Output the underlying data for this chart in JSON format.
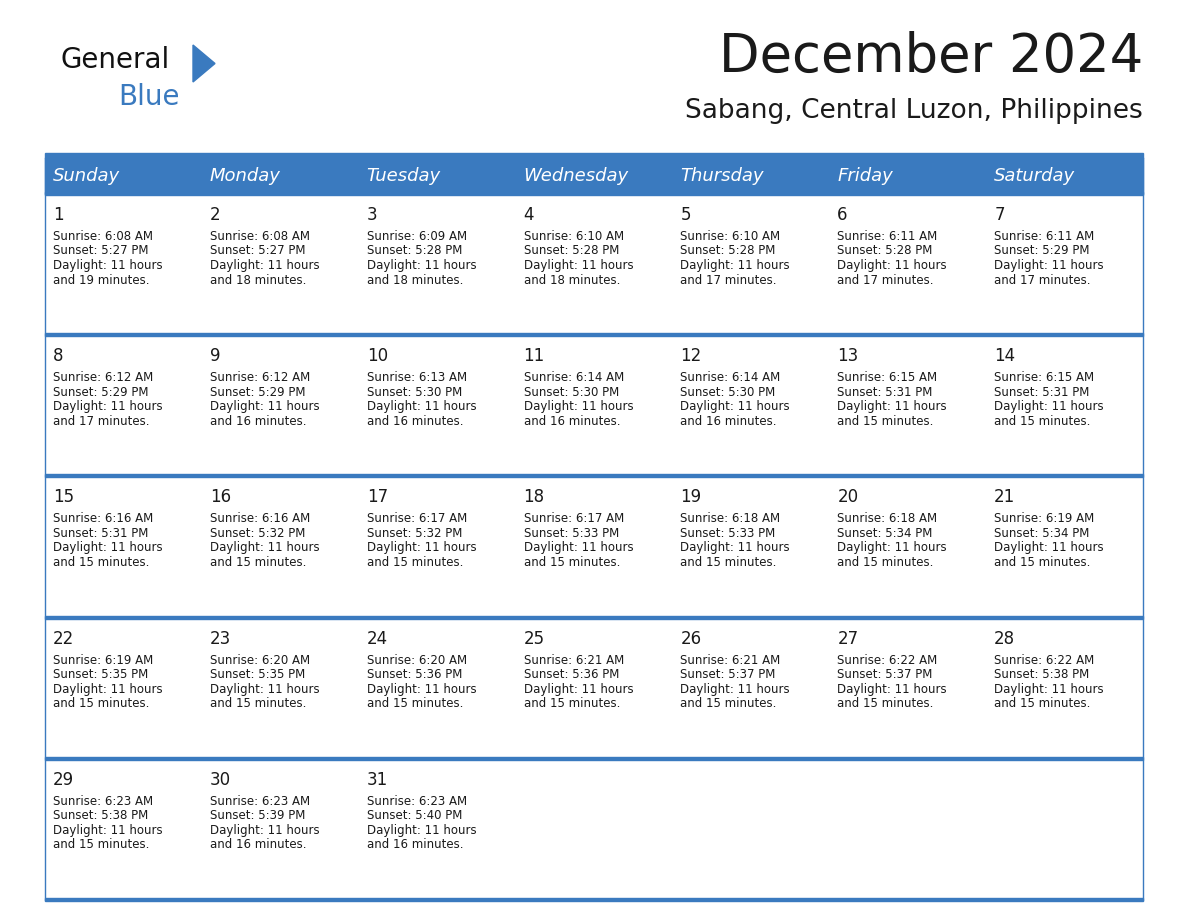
{
  "title": "December 2024",
  "subtitle": "Sabang, Central Luzon, Philippines",
  "header_bg_color": "#3a7abf",
  "header_text_color": "#ffffff",
  "cell_bg_color": "#ffffff",
  "row_separator_color": "#3a7abf",
  "text_color": "#1a1a1a",
  "day_names": [
    "Sunday",
    "Monday",
    "Tuesday",
    "Wednesday",
    "Thursday",
    "Friday",
    "Saturday"
  ],
  "title_fontsize": 38,
  "subtitle_fontsize": 19,
  "header_fontsize": 13,
  "day_num_fontsize": 12,
  "cell_fontsize": 8.5,
  "logo_general_fontsize": 20,
  "logo_blue_fontsize": 20,
  "logo_color_general": "#111111",
  "logo_color_blue": "#3a7abf",
  "logo_triangle_color": "#3a7abf",
  "weeks": [
    [
      {
        "day": 1,
        "sunrise": "6:08 AM",
        "sunset": "5:27 PM",
        "daylight_hours": 11,
        "daylight_minutes": 19
      },
      {
        "day": 2,
        "sunrise": "6:08 AM",
        "sunset": "5:27 PM",
        "daylight_hours": 11,
        "daylight_minutes": 18
      },
      {
        "day": 3,
        "sunrise": "6:09 AM",
        "sunset": "5:28 PM",
        "daylight_hours": 11,
        "daylight_minutes": 18
      },
      {
        "day": 4,
        "sunrise": "6:10 AM",
        "sunset": "5:28 PM",
        "daylight_hours": 11,
        "daylight_minutes": 18
      },
      {
        "day": 5,
        "sunrise": "6:10 AM",
        "sunset": "5:28 PM",
        "daylight_hours": 11,
        "daylight_minutes": 17
      },
      {
        "day": 6,
        "sunrise": "6:11 AM",
        "sunset": "5:28 PM",
        "daylight_hours": 11,
        "daylight_minutes": 17
      },
      {
        "day": 7,
        "sunrise": "6:11 AM",
        "sunset": "5:29 PM",
        "daylight_hours": 11,
        "daylight_minutes": 17
      }
    ],
    [
      {
        "day": 8,
        "sunrise": "6:12 AM",
        "sunset": "5:29 PM",
        "daylight_hours": 11,
        "daylight_minutes": 17
      },
      {
        "day": 9,
        "sunrise": "6:12 AM",
        "sunset": "5:29 PM",
        "daylight_hours": 11,
        "daylight_minutes": 16
      },
      {
        "day": 10,
        "sunrise": "6:13 AM",
        "sunset": "5:30 PM",
        "daylight_hours": 11,
        "daylight_minutes": 16
      },
      {
        "day": 11,
        "sunrise": "6:14 AM",
        "sunset": "5:30 PM",
        "daylight_hours": 11,
        "daylight_minutes": 16
      },
      {
        "day": 12,
        "sunrise": "6:14 AM",
        "sunset": "5:30 PM",
        "daylight_hours": 11,
        "daylight_minutes": 16
      },
      {
        "day": 13,
        "sunrise": "6:15 AM",
        "sunset": "5:31 PM",
        "daylight_hours": 11,
        "daylight_minutes": 15
      },
      {
        "day": 14,
        "sunrise": "6:15 AM",
        "sunset": "5:31 PM",
        "daylight_hours": 11,
        "daylight_minutes": 15
      }
    ],
    [
      {
        "day": 15,
        "sunrise": "6:16 AM",
        "sunset": "5:31 PM",
        "daylight_hours": 11,
        "daylight_minutes": 15
      },
      {
        "day": 16,
        "sunrise": "6:16 AM",
        "sunset": "5:32 PM",
        "daylight_hours": 11,
        "daylight_minutes": 15
      },
      {
        "day": 17,
        "sunrise": "6:17 AM",
        "sunset": "5:32 PM",
        "daylight_hours": 11,
        "daylight_minutes": 15
      },
      {
        "day": 18,
        "sunrise": "6:17 AM",
        "sunset": "5:33 PM",
        "daylight_hours": 11,
        "daylight_minutes": 15
      },
      {
        "day": 19,
        "sunrise": "6:18 AM",
        "sunset": "5:33 PM",
        "daylight_hours": 11,
        "daylight_minutes": 15
      },
      {
        "day": 20,
        "sunrise": "6:18 AM",
        "sunset": "5:34 PM",
        "daylight_hours": 11,
        "daylight_minutes": 15
      },
      {
        "day": 21,
        "sunrise": "6:19 AM",
        "sunset": "5:34 PM",
        "daylight_hours": 11,
        "daylight_minutes": 15
      }
    ],
    [
      {
        "day": 22,
        "sunrise": "6:19 AM",
        "sunset": "5:35 PM",
        "daylight_hours": 11,
        "daylight_minutes": 15
      },
      {
        "day": 23,
        "sunrise": "6:20 AM",
        "sunset": "5:35 PM",
        "daylight_hours": 11,
        "daylight_minutes": 15
      },
      {
        "day": 24,
        "sunrise": "6:20 AM",
        "sunset": "5:36 PM",
        "daylight_hours": 11,
        "daylight_minutes": 15
      },
      {
        "day": 25,
        "sunrise": "6:21 AM",
        "sunset": "5:36 PM",
        "daylight_hours": 11,
        "daylight_minutes": 15
      },
      {
        "day": 26,
        "sunrise": "6:21 AM",
        "sunset": "5:37 PM",
        "daylight_hours": 11,
        "daylight_minutes": 15
      },
      {
        "day": 27,
        "sunrise": "6:22 AM",
        "sunset": "5:37 PM",
        "daylight_hours": 11,
        "daylight_minutes": 15
      },
      {
        "day": 28,
        "sunrise": "6:22 AM",
        "sunset": "5:38 PM",
        "daylight_hours": 11,
        "daylight_minutes": 15
      }
    ],
    [
      {
        "day": 29,
        "sunrise": "6:23 AM",
        "sunset": "5:38 PM",
        "daylight_hours": 11,
        "daylight_minutes": 15
      },
      {
        "day": 30,
        "sunrise": "6:23 AM",
        "sunset": "5:39 PM",
        "daylight_hours": 11,
        "daylight_minutes": 16
      },
      {
        "day": 31,
        "sunrise": "6:23 AM",
        "sunset": "5:40 PM",
        "daylight_hours": 11,
        "daylight_minutes": 16
      },
      null,
      null,
      null,
      null
    ]
  ]
}
